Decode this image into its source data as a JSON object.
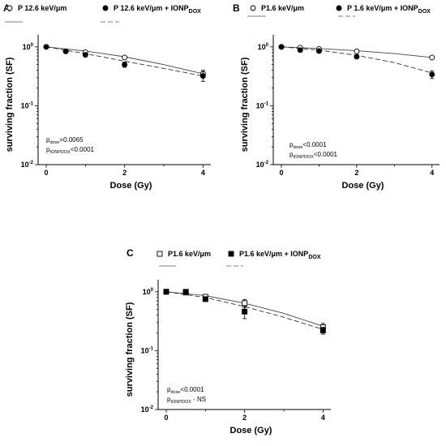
{
  "chart_data": [
    {
      "panel_label": "A",
      "type": "scatter",
      "xlabel": "Dose (Gy)",
      "ylabel": "surviving fraction (SF)",
      "x_ticks": [
        0,
        2,
        4
      ],
      "y_scale": "log",
      "ylim": [
        0.01,
        1.6
      ],
      "y_ticks": [
        {
          "value": 1,
          "base": "10",
          "exp": "0"
        },
        {
          "value": 0.1,
          "base": "10",
          "exp": "-1"
        },
        {
          "value": 0.01,
          "base": "10",
          "exp": "-2"
        }
      ],
      "legend": {
        "placement": "top"
      },
      "series": [
        {
          "name_main": "P 12.6 keV/μm",
          "name_sub": "",
          "marker": "open-circle",
          "line": "solid",
          "points": [
            {
              "x": 0,
              "y": 1.0,
              "err": 0
            },
            {
              "x": 0.5,
              "y": 0.84,
              "err": 0.03
            },
            {
              "x": 1,
              "y": 0.81,
              "err": 0.04
            },
            {
              "x": 2,
              "y": 0.66,
              "err": 0.04
            },
            {
              "x": 4,
              "y": 0.35,
              "err": 0.05
            }
          ],
          "fit": [
            [
              0,
              1.0
            ],
            [
              1,
              0.85
            ],
            [
              2,
              0.68
            ],
            [
              3,
              0.5
            ],
            [
              4,
              0.35
            ]
          ]
        },
        {
          "name_main": "P 12.6 keV/μm + IONP",
          "name_sub": "DOX",
          "marker": "filled-circle",
          "line": "dashed",
          "points": [
            {
              "x": 0,
              "y": 1.0,
              "err": 0
            },
            {
              "x": 0.5,
              "y": 0.84,
              "err": 0.03
            },
            {
              "x": 1,
              "y": 0.73,
              "err": 0.04
            },
            {
              "x": 2,
              "y": 0.5,
              "err": 0.05
            },
            {
              "x": 4,
              "y": 0.32,
              "err": 0.06
            }
          ],
          "fit": [
            [
              0,
              1.0
            ],
            [
              1,
              0.77
            ],
            [
              2,
              0.57
            ],
            [
              3,
              0.43
            ],
            [
              4,
              0.32
            ]
          ]
        }
      ],
      "pvalues": [
        {
          "main": "p",
          "sub": "dose",
          "rest": "=0.0065"
        },
        {
          "main": "p",
          "sub": "IONPDOX",
          "rest": "<0.0001"
        }
      ]
    },
    {
      "panel_label": "B",
      "type": "scatter",
      "xlabel": "Dose (Gy)",
      "ylabel": "surviving fraction (SF)",
      "x_ticks": [
        0,
        2,
        4
      ],
      "y_scale": "log",
      "ylim": [
        0.01,
        1.6
      ],
      "y_ticks": [
        {
          "value": 1,
          "base": "10",
          "exp": "0"
        },
        {
          "value": 0.1,
          "base": "10",
          "exp": "-1"
        },
        {
          "value": 0.01,
          "base": "10",
          "exp": "-2"
        }
      ],
      "legend": {
        "placement": "top"
      },
      "series": [
        {
          "name_main": "P1.6 keV/μm",
          "name_sub": "",
          "marker": "open-circle",
          "line": "solid",
          "points": [
            {
              "x": 0,
              "y": 1.0,
              "err": 0
            },
            {
              "x": 0.5,
              "y": 0.97,
              "err": 0.03
            },
            {
              "x": 1,
              "y": 0.92,
              "err": 0.03
            },
            {
              "x": 2,
              "y": 0.84,
              "err": 0.03
            },
            {
              "x": 4,
              "y": 0.66,
              "err": 0.03
            }
          ],
          "fit": [
            [
              0,
              1.0
            ],
            [
              1,
              0.94
            ],
            [
              2,
              0.86
            ],
            [
              3,
              0.77
            ],
            [
              4,
              0.66
            ]
          ]
        },
        {
          "name_main": "P 1.6 keV/μm + IONP",
          "name_sub": "DOX",
          "marker": "filled-circle",
          "line": "dashed",
          "points": [
            {
              "x": 0,
              "y": 1.0,
              "err": 0
            },
            {
              "x": 0.5,
              "y": 0.88,
              "err": 0.03
            },
            {
              "x": 1,
              "y": 0.85,
              "err": 0.03
            },
            {
              "x": 2,
              "y": 0.68,
              "err": 0.04
            },
            {
              "x": 4,
              "y": 0.34,
              "err": 0.05
            }
          ],
          "fit": [
            [
              0,
              1.0
            ],
            [
              1,
              0.88
            ],
            [
              2,
              0.72
            ],
            [
              3,
              0.54
            ],
            [
              4,
              0.36
            ]
          ]
        }
      ],
      "pvalues": [
        {
          "main": "p",
          "sub": "dose",
          "rest": "<0.0001"
        },
        {
          "main": "p",
          "sub": "IONPDOX",
          "rest": "<0.0001"
        }
      ]
    },
    {
      "panel_label": "C",
      "type": "scatter",
      "xlabel": "Dose (Gy)",
      "ylabel": "surviving fraction (SF)",
      "x_ticks": [
        0,
        2,
        4
      ],
      "y_scale": "log",
      "ylim": [
        0.01,
        1.6
      ],
      "y_ticks": [
        {
          "value": 1,
          "base": "10",
          "exp": "0"
        },
        {
          "value": 0.1,
          "base": "10",
          "exp": "-1"
        },
        {
          "value": 0.01,
          "base": "10",
          "exp": "-2"
        }
      ],
      "legend": {
        "placement": "top"
      },
      "series": [
        {
          "name_main": "P1.6 keV/μm",
          "name_sub": "",
          "marker": "open-square",
          "line": "solid",
          "points": [
            {
              "x": 0,
              "y": 1.0,
              "err": 0
            },
            {
              "x": 0.5,
              "y": 0.97,
              "err": 0.04
            },
            {
              "x": 1,
              "y": 0.82,
              "err": 0.05
            },
            {
              "x": 2,
              "y": 0.64,
              "err": 0.1
            },
            {
              "x": 4,
              "y": 0.25,
              "err": 0.04
            }
          ],
          "fit": [
            [
              0,
              1.0
            ],
            [
              1,
              0.86
            ],
            [
              2,
              0.64
            ],
            [
              3,
              0.43
            ],
            [
              4,
              0.26
            ]
          ]
        },
        {
          "name_main": "P1.6 keV/μm + IONP",
          "name_sub": "DOX",
          "marker": "filled-square",
          "line": "dashed",
          "points": [
            {
              "x": 0,
              "y": 1.0,
              "err": 0
            },
            {
              "x": 0.5,
              "y": 1.0,
              "err": 0.04
            },
            {
              "x": 1,
              "y": 0.75,
              "err": 0.06
            },
            {
              "x": 2,
              "y": 0.46,
              "err": 0.11
            },
            {
              "x": 4,
              "y": 0.22,
              "err": 0.03
            }
          ],
          "fit": [
            [
              0,
              1.0
            ],
            [
              1,
              0.8
            ],
            [
              2,
              0.56
            ],
            [
              3,
              0.37
            ],
            [
              4,
              0.23
            ]
          ]
        }
      ],
      "pvalues": [
        {
          "main": "p",
          "sub": "dose",
          "rest": "<0.0001"
        },
        {
          "main": "p",
          "sub": "IONPDOX",
          "rest": " - NS"
        }
      ]
    }
  ]
}
